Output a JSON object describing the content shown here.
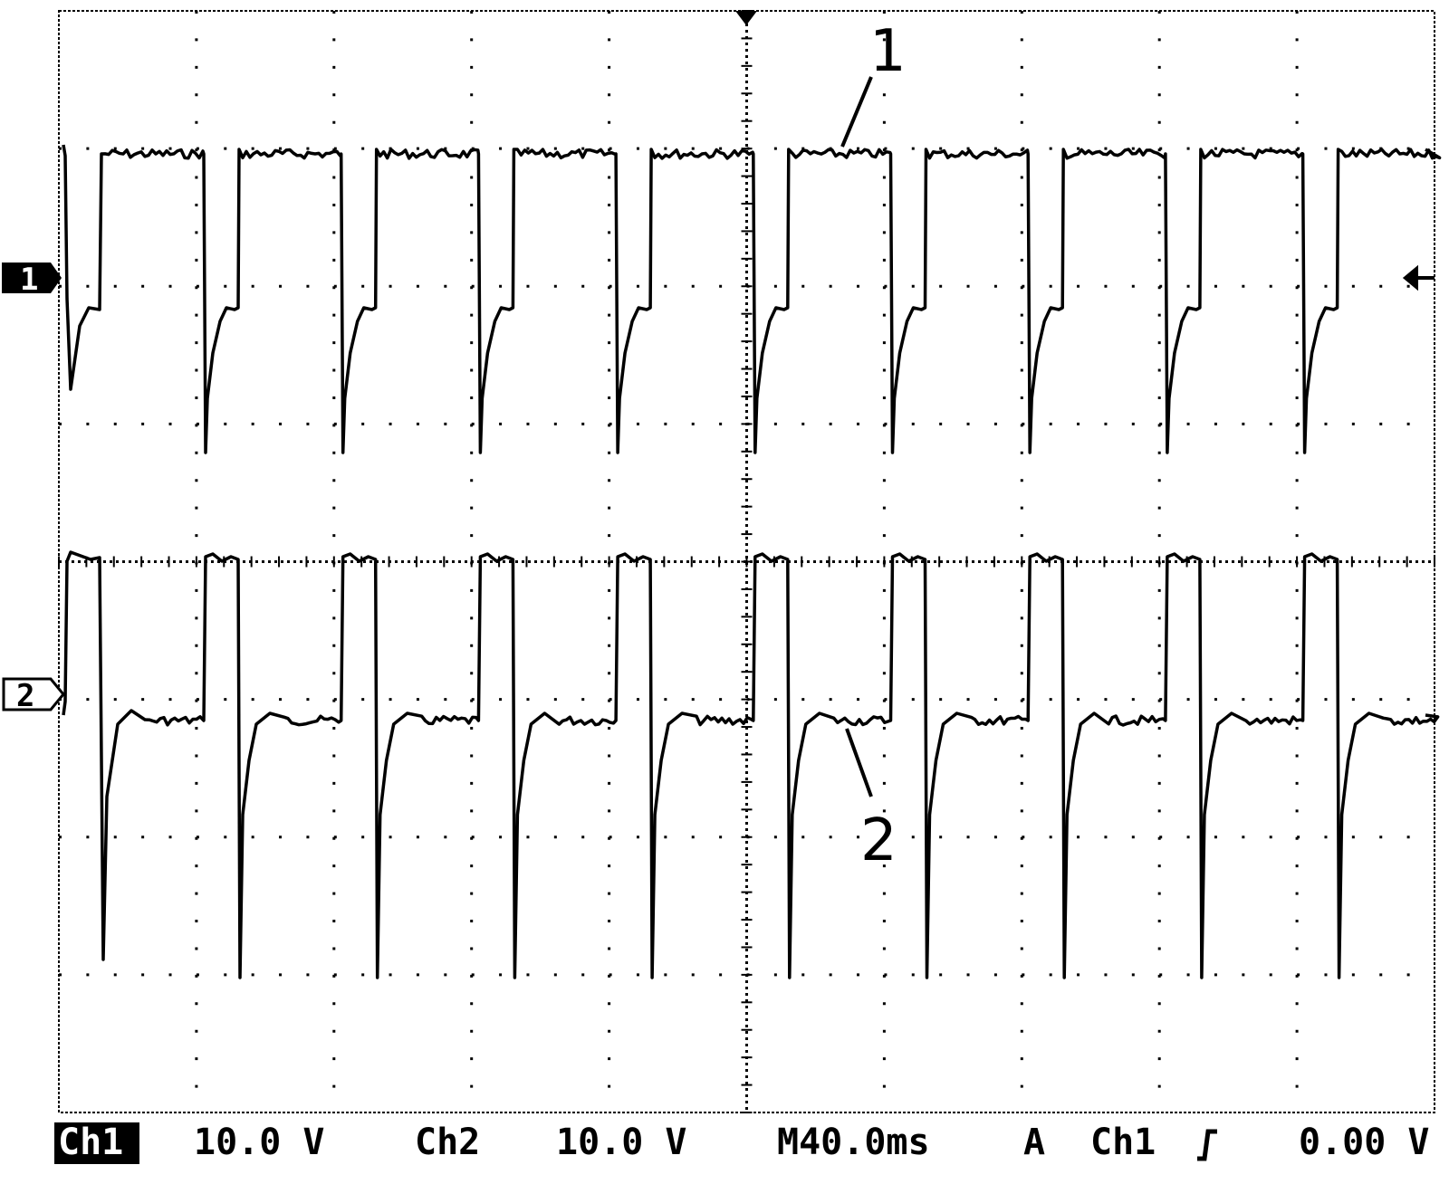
{
  "screen": {
    "channel_markers": [
      "1",
      "2"
    ],
    "trace_labels": [
      "1",
      "2"
    ],
    "status_bar": {
      "ch1_label": "Ch1",
      "ch1_scale": "10.0 V",
      "ch2_label": "Ch2",
      "ch2_scale": "10.0 V",
      "timebase": "M40.0ms",
      "trigger_mode": "A",
      "trigger_source": "Ch1",
      "trigger_level": "0.00 V"
    }
  }
}
